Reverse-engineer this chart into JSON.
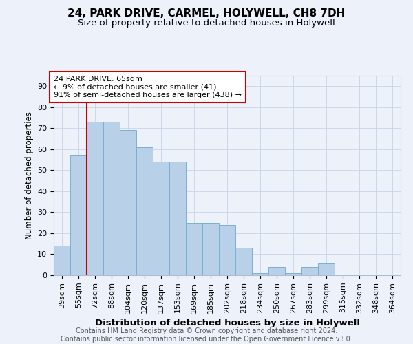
{
  "title": "24, PARK DRIVE, CARMEL, HOLYWELL, CH8 7DH",
  "subtitle": "Size of property relative to detached houses in Holywell",
  "xlabel": "Distribution of detached houses by size in Holywell",
  "ylabel": "Number of detached properties",
  "categories": [
    "39sqm",
    "55sqm",
    "72sqm",
    "88sqm",
    "104sqm",
    "120sqm",
    "137sqm",
    "153sqm",
    "169sqm",
    "185sqm",
    "202sqm",
    "218sqm",
    "234sqm",
    "250sqm",
    "267sqm",
    "283sqm",
    "299sqm",
    "315sqm",
    "332sqm",
    "348sqm",
    "364sqm"
  ],
  "values": [
    14,
    57,
    73,
    73,
    69,
    61,
    54,
    54,
    25,
    25,
    24,
    13,
    1,
    4,
    1,
    4,
    6,
    0,
    0,
    0,
    0
  ],
  "bar_color": "#b8d0e8",
  "bar_edge_color": "#7aafd4",
  "vline_color": "#cc0000",
  "annotation_box_text": "24 PARK DRIVE: 65sqm\n← 9% of detached houses are smaller (41)\n91% of semi-detached houses are larger (438) →",
  "annotation_box_color": "#ffffff",
  "annotation_box_edge_color": "#cc0000",
  "ylim": [
    0,
    95
  ],
  "yticks": [
    0,
    10,
    20,
    30,
    40,
    50,
    60,
    70,
    80,
    90
  ],
  "footer_text": "Contains HM Land Registry data © Crown copyright and database right 2024.\nContains public sector information licensed under the Open Government Licence v3.0.",
  "background_color": "#edf2fa",
  "title_fontsize": 11,
  "subtitle_fontsize": 9.5,
  "xlabel_fontsize": 9.5,
  "ylabel_fontsize": 8.5,
  "tick_fontsize": 8,
  "footer_fontsize": 7,
  "annot_fontsize": 8
}
